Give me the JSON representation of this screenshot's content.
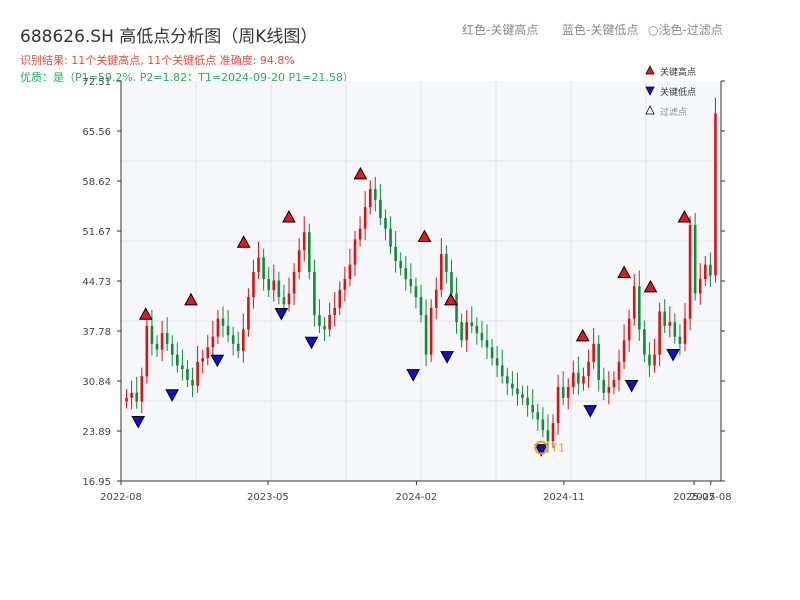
{
  "header": {
    "title": "688626.SH 高低点分析图（周K线图）",
    "legend_red": "红色-关键高点",
    "legend_blue": "蓝色-关键低点",
    "legend_light": "○浅色-过滤点",
    "result_line": "识别结果: 11个关键高点, 11个关键低点   准确度: 94.8%",
    "quality_line": "优质：是（P1=59.2%, P2=1.82；T1=2024-09-20 P1=21.58）"
  },
  "colors": {
    "up": "#e01010",
    "down": "#0e8c3a",
    "high_marker": "#e41a1a",
    "low_marker": "#1010d0",
    "t1_ring": "#f0a020",
    "plot_bg": "#f5f7fa"
  },
  "chart_data": {
    "type": "candlestick",
    "title": "688626.SH 高低点分析图（周K线图）",
    "ylim": [
      16.95,
      72.51
    ],
    "yticks": [
      "72.51",
      "65.56",
      "58.62",
      "51.67",
      "44.73",
      "37.78",
      "30.84",
      "23.89",
      "16.95"
    ],
    "xticks": [
      "2022-08",
      "2023-05",
      "2024-02",
      "2024-11",
      "2025-07",
      "2025-08"
    ],
    "x_range": [
      "2022-08-01",
      "2025-08-20"
    ],
    "legend": [
      "关键高点",
      "关键低点",
      "过滤点"
    ],
    "weekly_close": [
      28.5,
      29.2,
      28.0,
      31.5,
      38.5,
      36.0,
      35.2,
      37.5,
      36.0,
      34.5,
      33.0,
      32.5,
      31.0,
      30.2,
      33.5,
      34.0,
      35.5,
      37.0,
      39.5,
      38.5,
      37.2,
      36.0,
      35.0,
      38.0,
      42.5,
      46.0,
      48.0,
      45.0,
      43.5,
      44.8,
      42.5,
      41.5,
      43.0,
      46.0,
      49.0,
      51.5,
      46.0,
      40.0,
      38.5,
      38.0,
      40.0,
      41.0,
      43.5,
      45.0,
      47.0,
      50.5,
      52.0,
      55.0,
      57.5,
      56.0,
      53.5,
      52.0,
      49.5,
      47.5,
      46.5,
      45.0,
      44.0,
      42.5,
      40.0,
      34.5,
      41.0,
      43.5,
      48.5,
      46.0,
      43.0,
      39.0,
      36.5,
      39.0,
      38.5,
      37.5,
      36.5,
      35.5,
      34.0,
      33.0,
      31.5,
      30.5,
      29.8,
      29.0,
      28.5,
      27.5,
      26.5,
      25.5,
      24.0,
      22.5,
      25.0,
      30.0,
      28.5,
      30.0,
      32.0,
      30.5,
      31.5,
      33.5,
      36.0,
      31.0,
      29.2,
      30.0,
      31.0,
      33.5,
      36.5,
      39.5,
      44.0,
      38.0,
      34.5,
      33.0,
      34.5,
      40.5,
      38.5,
      39.0,
      37.0,
      36.0,
      39.5,
      52.5,
      43.0,
      45.0,
      47.0,
      45.5,
      68.0
    ],
    "key_highs": [
      {
        "x": "2022-09-16",
        "y": 39.0
      },
      {
        "x": "2022-12-09",
        "y": 41.0
      },
      {
        "x": "2023-03-17",
        "y": 49.0
      },
      {
        "x": "2023-06-09",
        "y": 52.5
      },
      {
        "x": "2023-10-20",
        "y": 58.5
      },
      {
        "x": "2024-02-16",
        "y": 49.8
      },
      {
        "x": "2024-04-05",
        "y": 41.0
      },
      {
        "x": "2024-12-06",
        "y": 36.0
      },
      {
        "x": "2025-02-21",
        "y": 44.8
      },
      {
        "x": "2025-04-11",
        "y": 42.8
      },
      {
        "x": "2025-06-13",
        "y": 52.5
      }
    ],
    "key_lows": [
      {
        "x": "2022-09-02",
        "y": 25.5
      },
      {
        "x": "2022-11-04",
        "y": 29.2
      },
      {
        "x": "2023-01-27",
        "y": 34.0
      },
      {
        "x": "2023-05-26",
        "y": 40.5
      },
      {
        "x": "2023-07-21",
        "y": 36.5
      },
      {
        "x": "2024-01-26",
        "y": 32.0
      },
      {
        "x": "2024-03-29",
        "y": 34.5
      },
      {
        "x": "2024-09-20",
        "y": 21.58
      },
      {
        "x": "2024-12-20",
        "y": 27.0
      },
      {
        "x": "2025-03-07",
        "y": 30.5
      },
      {
        "x": "2025-05-23",
        "y": 34.8
      }
    ],
    "annotation": {
      "label": "T1",
      "x": "2024-09-20",
      "y": 21.58
    }
  }
}
